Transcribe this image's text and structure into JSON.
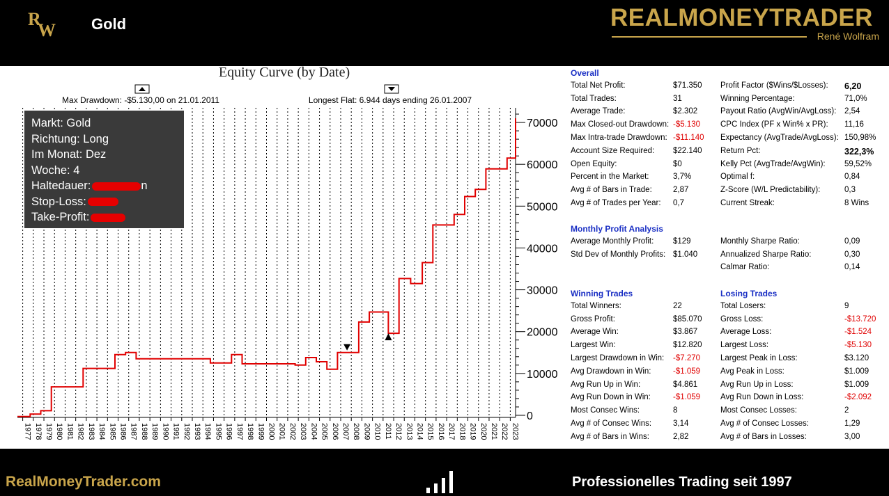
{
  "header": {
    "logo_text": "RW",
    "title": "Gold",
    "brand_name": "REALMONEYTRADER",
    "brand_sub": "René Wolfram"
  },
  "colors": {
    "gold": "#c9a54b",
    "equity_line": "#e00000",
    "section_heading": "#1a2fc4",
    "negative": "#e00000"
  },
  "info_box": {
    "markt": "Markt: Gold",
    "richtung": "Richtung: Long",
    "monat": "Im Monat: Dez",
    "woche": "Woche: 4",
    "haltedauer": "Haltedauer:",
    "haltedauer_suffix": "n",
    "stop_loss": "Stop-Loss:",
    "take_profit": "Take-Profit:"
  },
  "chart_data": {
    "type": "line",
    "title": "Equity Curve (by Date)",
    "annotations": {
      "max_drawdown": "Max Drawdown: -$5.130,00 on 21.01.2011",
      "longest_flat": "Longest Flat: 6.944 days ending 26.01.2007"
    },
    "x_tick_labels": [
      "1977",
      "1978",
      "1979",
      "1980",
      "1981",
      "1982",
      "1983",
      "1984",
      "1985",
      "1986",
      "1987",
      "1988",
      "1989",
      "1990",
      "1991",
      "1992",
      "1993",
      "1994",
      "1995",
      "1996",
      "1997",
      "1998",
      "1999",
      "2000",
      "2001",
      "2002",
      "2003",
      "2004",
      "2005",
      "2006",
      "2007",
      "2008",
      "2009",
      "2010",
      "2011",
      "2012",
      "2013",
      "2014",
      "2015",
      "2016",
      "2017",
      "2018",
      "2019",
      "2020",
      "2021",
      "2022",
      "2023"
    ],
    "y_tick_labels": [
      "70000",
      "60000",
      "50000",
      "40000",
      "30000",
      "20000",
      "10000",
      "0"
    ],
    "y_ticks": [
      70000,
      60000,
      50000,
      40000,
      30000,
      20000,
      10000,
      0
    ],
    "ylim": [
      -500,
      73500
    ],
    "xlim": [
      1977.0,
      2024.0
    ],
    "grid": true,
    "series": [
      {
        "points": [
          [
            1977.0,
            -300
          ],
          [
            1978.2,
            -300
          ],
          [
            1978.2,
            300
          ],
          [
            1979.2,
            300
          ],
          [
            1979.2,
            1100
          ],
          [
            1980.2,
            1100
          ],
          [
            1980.2,
            6800
          ],
          [
            1983.2,
            6800
          ],
          [
            1983.2,
            11200
          ],
          [
            1986.2,
            11200
          ],
          [
            1986.2,
            14500
          ],
          [
            1987.2,
            14500
          ],
          [
            1987.2,
            15000
          ],
          [
            1988.2,
            15000
          ],
          [
            1988.2,
            13500
          ],
          [
            1995.2,
            13500
          ],
          [
            1995.2,
            12500
          ],
          [
            1997.2,
            12500
          ],
          [
            1997.2,
            14500
          ],
          [
            1998.2,
            14500
          ],
          [
            1998.2,
            12300
          ],
          [
            2003.2,
            12300
          ],
          [
            2003.2,
            12000
          ],
          [
            2004.2,
            12000
          ],
          [
            2004.2,
            13800
          ],
          [
            2005.2,
            13800
          ],
          [
            2005.2,
            12800
          ],
          [
            2006.2,
            12800
          ],
          [
            2006.2,
            11000
          ],
          [
            2007.2,
            11000
          ],
          [
            2007.2,
            15000
          ],
          [
            2009.2,
            15000
          ],
          [
            2009.2,
            22300
          ],
          [
            2010.2,
            22300
          ],
          [
            2010.2,
            24700
          ],
          [
            2012.0,
            24700
          ],
          [
            2012.0,
            19600
          ],
          [
            2013.0,
            19600
          ],
          [
            2013.0,
            32700
          ],
          [
            2014.1,
            32700
          ],
          [
            2014.1,
            31500
          ],
          [
            2015.2,
            31500
          ],
          [
            2015.2,
            36500
          ],
          [
            2016.2,
            36500
          ],
          [
            2016.2,
            45500
          ],
          [
            2018.2,
            45500
          ],
          [
            2018.2,
            48000
          ],
          [
            2019.2,
            48000
          ],
          [
            2019.2,
            52300
          ],
          [
            2020.2,
            52300
          ],
          [
            2020.2,
            54000
          ],
          [
            2021.2,
            54000
          ],
          [
            2021.2,
            58900
          ],
          [
            2023.2,
            58900
          ],
          [
            2023.2,
            61500
          ],
          [
            2024.0,
            61500
          ],
          [
            2024.0,
            71000
          ]
        ]
      }
    ],
    "markers": [
      {
        "type": "down-triangle",
        "x": 2008.1,
        "y": 15000
      },
      {
        "type": "up-triangle",
        "x": 2012.0,
        "y": 19600
      }
    ]
  },
  "stats": {
    "overall": {
      "heading": "Overall",
      "left": [
        [
          "Total Net Profit:",
          "$71.350"
        ],
        [
          "Total Trades:",
          "31"
        ],
        [
          "Average Trade:",
          "$2.302"
        ],
        [
          "Max Closed-out Drawdown:",
          "-$5.130"
        ],
        [
          "Max Intra-trade Drawdown:",
          "-$11.140"
        ],
        [
          "Account Size Required:",
          "$22.140"
        ],
        [
          "Open Equity:",
          "$0"
        ],
        [
          "Percent in the Market:",
          "3,7%"
        ],
        [
          "Avg # of Bars in Trade:",
          "2,87"
        ],
        [
          "Avg # of Trades per Year:",
          "0,7"
        ]
      ],
      "right": [
        [
          "Profit Factor ($Wins/$Losses):",
          "6,20"
        ],
        [
          "Winning Percentage:",
          "71,0%"
        ],
        [
          "Payout Ratio (AvgWin/AvgLoss):",
          "2,54"
        ],
        [
          "CPC Index (PF x Win% x PR):",
          "11,16"
        ],
        [
          "Expectancy (AvgTrade/AvgLoss):",
          "150,98%"
        ],
        [
          "Return Pct:",
          "322,3%"
        ],
        [
          "Kelly Pct (AvgTrade/AvgWin):",
          "59,52%"
        ],
        [
          "Optimal f:",
          "0,84"
        ],
        [
          "Z-Score (W/L Predictability):",
          "0,3"
        ],
        [
          "Current Streak:",
          "8 Wins"
        ]
      ]
    },
    "monthly": {
      "heading": "Monthly Profit Analysis",
      "left": [
        [
          "Average Monthly Profit:",
          "$129"
        ],
        [
          "Std Dev of Monthly Profits:",
          "$1.040"
        ]
      ],
      "right": [
        [
          "Monthly Sharpe Ratio:",
          "0,09"
        ],
        [
          "Annualized Sharpe Ratio:",
          "0,30"
        ],
        [
          "Calmar Ratio:",
          "0,14"
        ]
      ]
    },
    "winning": {
      "heading": "Winning Trades",
      "rows": [
        [
          "Total Winners:",
          "22"
        ],
        [
          "Gross Profit:",
          "$85.070"
        ],
        [
          "Average Win:",
          "$3.867"
        ],
        [
          "Largest Win:",
          "$12.820"
        ],
        [
          "Largest Drawdown in Win:",
          "-$7.270"
        ],
        [
          "Avg Drawdown in Win:",
          "-$1.059"
        ],
        [
          "Avg Run Up in Win:",
          "$4.861"
        ],
        [
          "Avg Run Down in Win:",
          "-$1.059"
        ],
        [
          "Most Consec Wins:",
          "8"
        ],
        [
          "Avg # of Consec Wins:",
          "3,14"
        ],
        [
          "Avg # of Bars in Wins:",
          "2,82"
        ]
      ]
    },
    "losing": {
      "heading": "Losing Trades",
      "rows": [
        [
          "Total Losers:",
          "9"
        ],
        [
          "Gross Loss:",
          "-$13.720"
        ],
        [
          "Average Loss:",
          "-$1.524"
        ],
        [
          "Largest Loss:",
          "-$5.130"
        ],
        [
          "Largest Peak in Loss:",
          "$3.120"
        ],
        [
          "Avg Peak in Loss:",
          "$1.009"
        ],
        [
          "Avg Run Up in Loss:",
          "$1.009"
        ],
        [
          "Avg Run Down in Loss:",
          "-$2.092"
        ],
        [
          "Most Consec Losses:",
          "2"
        ],
        [
          "Avg # of Consec Losses:",
          "1,29"
        ],
        [
          "Avg # of Bars in Losses:",
          "3,00"
        ]
      ]
    }
  },
  "footer": {
    "left": "RealMoneyTrader.com",
    "right": "Professionelles Trading seit 1997"
  }
}
